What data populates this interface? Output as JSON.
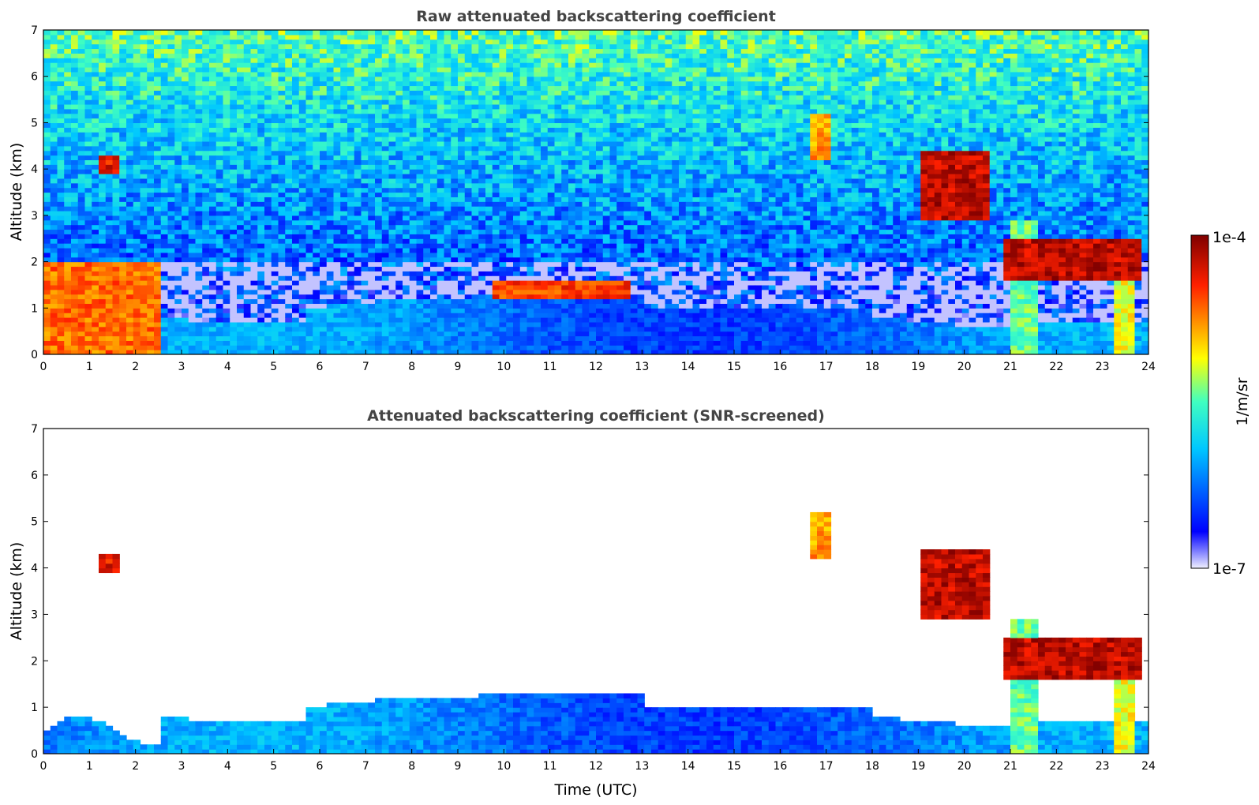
{
  "chart_data": [
    {
      "type": "heatmap",
      "title": "Raw attenuated backscattering coefficient",
      "xlabel": "",
      "ylabel": "Altitude (km)",
      "xlim": [
        0,
        24
      ],
      "ylim": [
        0,
        7
      ],
      "xticks": [
        "0",
        "1",
        "2",
        "3",
        "4",
        "5",
        "6",
        "7",
        "8",
        "9",
        "10",
        "11",
        "12",
        "13",
        "14",
        "15",
        "16",
        "17",
        "18",
        "19",
        "20",
        "21",
        "22",
        "23",
        "24"
      ],
      "yticks": [
        "0",
        "1",
        "2",
        "3",
        "4",
        "5",
        "6",
        "7"
      ],
      "screened": false,
      "features": [
        {
          "name": "cloud-4km",
          "t": [
            1.2,
            1.65
          ],
          "z": [
            3.95,
            4.3
          ],
          "v": 0.95
        },
        {
          "name": "virga-17h",
          "t": [
            16.6,
            17.1
          ],
          "z": [
            4.2,
            5.2
          ],
          "v": 0.8
        },
        {
          "name": "cloud-19to21",
          "t": [
            19.1,
            20.5
          ],
          "z": [
            2.9,
            4.4
          ],
          "v": 1.0
        },
        {
          "name": "cloud-2km-21to24",
          "t": [
            20.8,
            23.8
          ],
          "z": [
            1.6,
            2.5
          ],
          "v": 1.0
        },
        {
          "name": "precip-21h",
          "t": [
            21.0,
            21.6
          ],
          "z": [
            0,
            2.9
          ],
          "v": 0.6
        },
        {
          "name": "precip-23h",
          "t": [
            23.2,
            23.7
          ],
          "z": [
            0,
            1.9
          ],
          "v": 0.7
        },
        {
          "name": "bl-tops-10to13",
          "t": [
            9.8,
            12.7
          ],
          "z": [
            1.2,
            1.6
          ],
          "v": 0.9
        },
        {
          "name": "early-cloud-0to2",
          "t": [
            0,
            2.6
          ],
          "z": [
            0,
            2.0
          ],
          "v": 0.85
        }
      ]
    },
    {
      "type": "heatmap",
      "title": "Attenuated backscattering coefficient (SNR-screened)",
      "xlabel": "Time (UTC)",
      "ylabel": "Altitude (km)",
      "xlim": [
        0,
        24
      ],
      "ylim": [
        0,
        7
      ],
      "xticks": [
        "0",
        "1",
        "2",
        "3",
        "4",
        "5",
        "6",
        "7",
        "8",
        "9",
        "10",
        "11",
        "12",
        "13",
        "14",
        "15",
        "16",
        "17",
        "18",
        "19",
        "20",
        "21",
        "22",
        "23",
        "24"
      ],
      "yticks": [
        "0",
        "1",
        "2",
        "3",
        "4",
        "5",
        "6",
        "7"
      ],
      "screened": true,
      "features": [
        {
          "name": "cloud-4km",
          "t": [
            1.2,
            1.65
          ],
          "z": [
            3.95,
            4.3
          ],
          "v": 0.95
        },
        {
          "name": "virga-17h",
          "t": [
            16.6,
            17.1
          ],
          "z": [
            4.2,
            5.2
          ],
          "v": 0.8
        },
        {
          "name": "cloud-19to21",
          "t": [
            19.1,
            20.5
          ],
          "z": [
            2.9,
            4.4
          ],
          "v": 1.0
        },
        {
          "name": "cloud-2km-21to24",
          "t": [
            20.8,
            23.8
          ],
          "z": [
            1.6,
            2.5
          ],
          "v": 1.0
        },
        {
          "name": "precip-21h",
          "t": [
            21.0,
            21.6
          ],
          "z": [
            0,
            2.9
          ],
          "v": 0.6
        },
        {
          "name": "precip-23h",
          "t": [
            23.2,
            23.7
          ],
          "z": [
            0,
            1.9
          ],
          "v": 0.7
        }
      ]
    }
  ],
  "colorbar": {
    "label": "1/m/sr",
    "max_label": "1e-4",
    "min_label": "1e-7",
    "colormap": "jet",
    "min_value": 1e-07,
    "max_value": 0.0001
  }
}
